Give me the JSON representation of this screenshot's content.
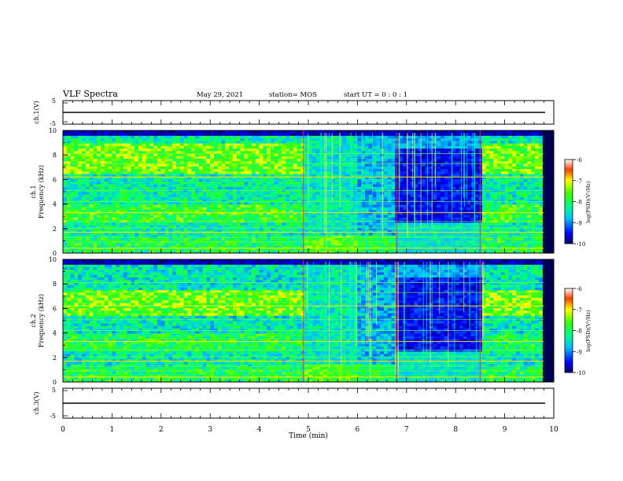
{
  "header": {
    "title": "VLF Spectra",
    "date": "May 29, 2021",
    "station": "station= MOS",
    "start": "start  UT =   0 : 0  : 1"
  },
  "chart_data": [
    {
      "type": "line",
      "panel": "ch1-waveform",
      "ylabel": "ch.1(V)",
      "ylim": [
        -5,
        5
      ],
      "yticks": [
        "5",
        "-5"
      ],
      "x": [
        0,
        10
      ],
      "values": [
        0,
        0
      ]
    },
    {
      "type": "heatmap",
      "panel": "ch1-spectrogram",
      "ylabel_top": "ch.1",
      "ylabel": "Frequency (kHz)",
      "ylim": [
        0,
        10
      ],
      "yticks": [
        "0",
        "2",
        "4",
        "6",
        "8",
        "10"
      ],
      "colorbar": {
        "label": "log(PSD)(V²/Hz)",
        "ticks": [
          "-6",
          "-7",
          "-8",
          "-9",
          "-10"
        ],
        "range": [
          -10,
          -6
        ]
      },
      "quiet_interval_min": [
        6.8,
        8.5
      ],
      "transition_min": 4.9,
      "data_end_min": 9.8
    },
    {
      "type": "heatmap",
      "panel": "ch2-spectrogram",
      "ylabel_top": "ch.2",
      "ylabel": "Frequency (kHz)",
      "ylim": [
        0,
        10
      ],
      "yticks": [
        "0",
        "2",
        "4",
        "6",
        "8",
        "10"
      ],
      "colorbar": {
        "label": "log(PSD)(V²/Hz)",
        "ticks": [
          "-6",
          "-7",
          "-8",
          "-9",
          "-10"
        ],
        "range": [
          -10,
          -6
        ]
      },
      "quiet_interval_min": [
        6.8,
        8.5
      ],
      "transition_min": 4.9,
      "data_end_min": 9.8
    },
    {
      "type": "line",
      "panel": "ch3-waveform",
      "ylabel": "ch.3(V)",
      "ylim": [
        -5,
        5
      ],
      "yticks": [
        "5",
        "-5"
      ],
      "x": [
        0,
        10
      ],
      "values": [
        0,
        0
      ],
      "xlabel": "Time  (min)",
      "xticks": [
        "0",
        "1",
        "2",
        "3",
        "4",
        "5",
        "6",
        "7",
        "8",
        "9",
        "10"
      ]
    }
  ]
}
